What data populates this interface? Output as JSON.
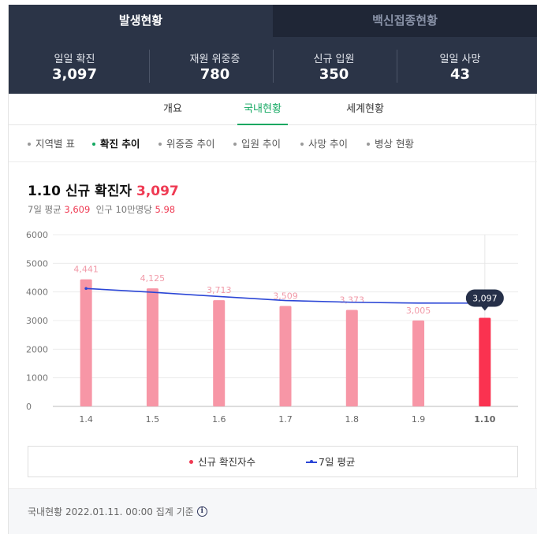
{
  "header": {
    "tabs": [
      {
        "label": "발생현황",
        "active": true
      },
      {
        "label": "백신접종현황",
        "active": false
      }
    ],
    "stats": [
      {
        "label": "일일 확진",
        "value": "3,097"
      },
      {
        "label": "재원 위중증",
        "value": "780"
      },
      {
        "label": "신규 입원",
        "value": "350"
      },
      {
        "label": "일일 사망",
        "value": "43"
      }
    ]
  },
  "subtabs": [
    {
      "label": "개요",
      "active": false
    },
    {
      "label": "국내현황",
      "active": true
    },
    {
      "label": "세계현황",
      "active": false
    }
  ],
  "filters": [
    {
      "label": "지역별 표",
      "active": false
    },
    {
      "label": "확진 추이",
      "active": true
    },
    {
      "label": "위중증 추이",
      "active": false
    },
    {
      "label": "입원 추이",
      "active": false
    },
    {
      "label": "사망 추이",
      "active": false
    },
    {
      "label": "병상 현황",
      "active": false
    }
  ],
  "chart_header": {
    "title": "1.10 신규 확진자",
    "title_value": "3,097",
    "avg_label": "7일 평균",
    "avg_value": "3,609",
    "per_label": "인구 10만명당",
    "per_value": "5.98"
  },
  "chart_data": {
    "type": "bar",
    "categories": [
      "1.4",
      "1.5",
      "1.6",
      "1.7",
      "1.8",
      "1.9",
      "1.10"
    ],
    "series": [
      {
        "name": "신규 확진자수",
        "type": "bar",
        "values": [
          4441,
          4125,
          3713,
          3509,
          3373,
          3005,
          3097
        ],
        "labels": [
          "4,441",
          "4,125",
          "3,713",
          "3,509",
          "3,373",
          "3,005",
          "3,097"
        ]
      },
      {
        "name": "7일 평균",
        "type": "line",
        "values": [
          4120,
          3990,
          3840,
          3700,
          3640,
          3610,
          3609
        ]
      }
    ],
    "ylim": [
      0,
      6000
    ],
    "yticks": [
      0,
      1000,
      2000,
      3000,
      4000,
      5000,
      6000
    ],
    "highlight_index": 6,
    "colors": {
      "bar": "#f796a6",
      "bar_highlight": "#fa3250",
      "avg_line": "#2b46d6",
      "tooltip": "#263049"
    },
    "grid": true
  },
  "legend": [
    {
      "label": "신규 확진자수",
      "marker": "dot"
    },
    {
      "label": "7일 평균",
      "marker": "line"
    }
  ],
  "footer": {
    "text": "국내현황 2022.01.11. 00:00 집계 기준",
    "icon": "info-icon"
  }
}
